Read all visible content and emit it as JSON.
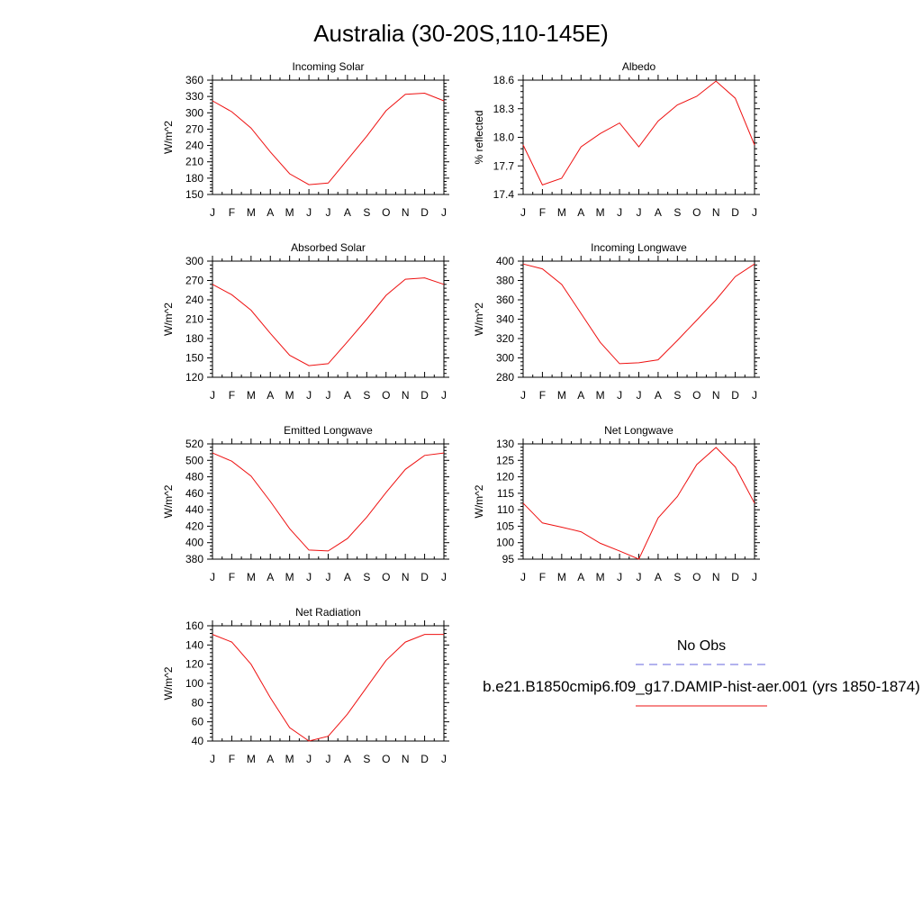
{
  "title": "Australia (30-20S,110-145E)",
  "months": [
    "J",
    "F",
    "M",
    "A",
    "M",
    "J",
    "J",
    "A",
    "S",
    "O",
    "N",
    "D",
    "J"
  ],
  "colors": {
    "model": "#ee1111",
    "obs": "#6666dd",
    "axis": "#000000"
  },
  "chart_data": [
    {
      "type": "line",
      "title": "Incoming Solar",
      "ylabel": "W/m^2",
      "ylim": [
        150,
        360
      ],
      "yticks": [
        150,
        180,
        210,
        240,
        270,
        300,
        330,
        360
      ],
      "decimals": 0,
      "series": [
        {
          "values": [
            322,
            302,
            272,
            228,
            188,
            168,
            171,
            214,
            257,
            304,
            334,
            336,
            322
          ]
        }
      ]
    },
    {
      "type": "line",
      "title": "Albedo",
      "ylabel": "% reflected",
      "ylim": [
        17.4,
        18.6
      ],
      "yticks": [
        17.4,
        17.7,
        18.0,
        18.3,
        18.6
      ],
      "decimals": 1,
      "series": [
        {
          "values": [
            17.92,
            17.5,
            17.57,
            17.9,
            18.04,
            18.15,
            17.9,
            18.17,
            18.34,
            18.43,
            18.59,
            18.41,
            17.92
          ]
        }
      ]
    },
    {
      "type": "line",
      "title": "Absorbed Solar",
      "ylabel": "W/m^2",
      "ylim": [
        120,
        300
      ],
      "yticks": [
        120,
        150,
        180,
        210,
        240,
        270,
        300
      ],
      "decimals": 0,
      "series": [
        {
          "values": [
            264,
            248,
            224,
            188,
            154,
            138,
            141,
            175,
            210,
            247,
            272,
            274,
            264
          ]
        }
      ]
    },
    {
      "type": "line",
      "title": "Incoming Longwave",
      "ylabel": "W/m^2",
      "ylim": [
        280,
        400
      ],
      "yticks": [
        280,
        300,
        320,
        340,
        360,
        380,
        400
      ],
      "decimals": 0,
      "series": [
        {
          "values": [
            397,
            392,
            376,
            346,
            316,
            294,
            295,
            298,
            318,
            339,
            360,
            384,
            397
          ]
        }
      ]
    },
    {
      "type": "line",
      "title": "Emitted Longwave",
      "ylabel": "W/m^2",
      "ylim": [
        380,
        520
      ],
      "yticks": [
        380,
        400,
        420,
        440,
        460,
        480,
        500,
        520
      ],
      "decimals": 0,
      "series": [
        {
          "values": [
            509,
            499,
            481,
            450,
            417,
            391,
            390,
            405,
            431,
            461,
            489,
            506,
            509
          ]
        }
      ]
    },
    {
      "type": "line",
      "title": "Net Longwave",
      "ylabel": "W/m^2",
      "ylim": [
        95,
        130
      ],
      "yticks": [
        95,
        100,
        105,
        110,
        115,
        120,
        125,
        130
      ],
      "decimals": 0,
      "series": [
        {
          "values": [
            112,
            106,
            104.7,
            103.3,
            99.8,
            97.5,
            95,
            107.5,
            114,
            123.7,
            128.9,
            123,
            112
          ]
        }
      ]
    },
    {
      "type": "line",
      "title": "Net Radiation",
      "ylabel": "W/m^2",
      "ylim": [
        40,
        160
      ],
      "yticks": [
        40,
        60,
        80,
        100,
        120,
        140,
        160
      ],
      "decimals": 0,
      "series": [
        {
          "values": [
            151,
            143,
            120,
            85,
            54,
            40,
            45,
            68,
            96,
            124,
            143,
            151,
            151
          ]
        }
      ]
    }
  ],
  "legend": {
    "obs_label": "No Obs",
    "model_label": "b.e21.B1850cmip6.f09_g17.DAMIP-hist-aer.001 (yrs 1850-1874)"
  }
}
